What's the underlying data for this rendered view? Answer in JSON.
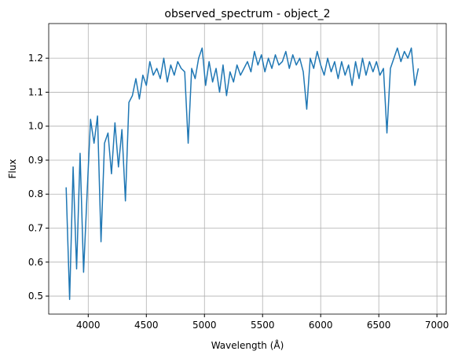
{
  "chart_data": {
    "type": "line",
    "title": "observed_spectrum - object_2",
    "x_label": "Wavelength (Å)",
    "y_label": "Flux",
    "x": [
      3810,
      3840,
      3870,
      3900,
      3930,
      3960,
      3990,
      4020,
      4050,
      4080,
      4110,
      4140,
      4170,
      4200,
      4230,
      4260,
      4290,
      4320,
      4350,
      4380,
      4410,
      4440,
      4470,
      4500,
      4530,
      4560,
      4590,
      4620,
      4650,
      4680,
      4710,
      4740,
      4770,
      4800,
      4830,
      4860,
      4890,
      4920,
      4950,
      4980,
      5010,
      5040,
      5070,
      5100,
      5130,
      5160,
      5190,
      5220,
      5250,
      5280,
      5310,
      5340,
      5370,
      5400,
      5430,
      5460,
      5490,
      5520,
      5550,
      5580,
      5610,
      5640,
      5670,
      5700,
      5730,
      5760,
      5790,
      5820,
      5850,
      5880,
      5910,
      5940,
      5970,
      6000,
      6030,
      6060,
      6090,
      6120,
      6150,
      6180,
      6210,
      6240,
      6270,
      6300,
      6330,
      6360,
      6390,
      6420,
      6450,
      6480,
      6510,
      6540,
      6570,
      6600,
      6630,
      6660,
      6690,
      6720,
      6750,
      6780,
      6810,
      6840
    ],
    "series": [
      {
        "name": "flux",
        "color": "#1f77b4",
        "values": [
          0.82,
          0.49,
          0.88,
          0.58,
          0.92,
          0.57,
          0.8,
          1.02,
          0.95,
          1.03,
          0.66,
          0.95,
          0.98,
          0.86,
          1.01,
          0.88,
          0.99,
          0.78,
          1.07,
          1.09,
          1.14,
          1.08,
          1.15,
          1.12,
          1.19,
          1.15,
          1.17,
          1.14,
          1.2,
          1.13,
          1.18,
          1.15,
          1.19,
          1.17,
          1.16,
          0.95,
          1.17,
          1.14,
          1.2,
          1.23,
          1.12,
          1.19,
          1.13,
          1.17,
          1.1,
          1.18,
          1.09,
          1.16,
          1.13,
          1.18,
          1.15,
          1.17,
          1.19,
          1.16,
          1.22,
          1.18,
          1.21,
          1.16,
          1.2,
          1.17,
          1.21,
          1.18,
          1.19,
          1.22,
          1.17,
          1.21,
          1.18,
          1.2,
          1.16,
          1.05,
          1.2,
          1.17,
          1.22,
          1.18,
          1.15,
          1.2,
          1.16,
          1.19,
          1.14,
          1.19,
          1.15,
          1.18,
          1.12,
          1.19,
          1.14,
          1.2,
          1.15,
          1.19,
          1.16,
          1.19,
          1.15,
          1.17,
          0.98,
          1.17,
          1.2,
          1.23,
          1.19,
          1.22,
          1.2,
          1.23,
          1.12,
          1.17
        ]
      }
    ],
    "xlim": [
      3660,
      7080
    ],
    "ylim": [
      0.447,
      1.302
    ],
    "xticks": [
      4000,
      4500,
      5000,
      5500,
      6000,
      6500,
      7000
    ],
    "yticks": [
      0.5,
      0.6,
      0.7,
      0.8,
      0.9,
      {
        "value": 1,
        "label": "1.0"
      },
      1.1,
      1.2
    ],
    "grid": true
  }
}
